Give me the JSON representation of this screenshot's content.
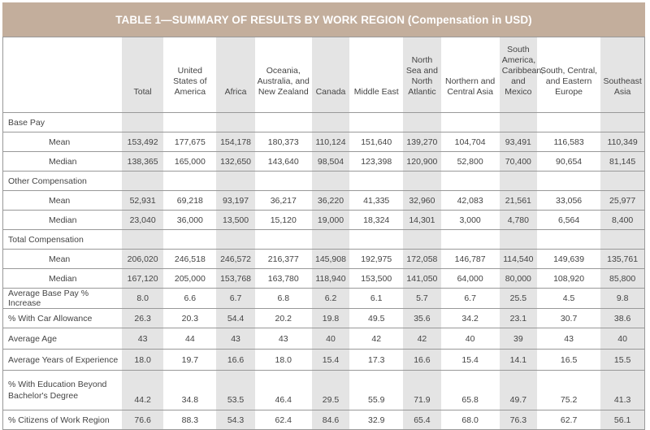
{
  "title": "TABLE 1—SUMMARY OF RESULTS BY WORK REGION (Compensation in USD)",
  "columns": [
    "Total",
    "United States of America",
    "Africa",
    "Oceania, Australia, and New Zealand",
    "Canada",
    "Middle East",
    "North Sea and North Atlantic",
    "Northern and Central Asia",
    "South America, Caribbean, and Mexico",
    "South, Central, and Eastern Europe",
    "Southeast Asia"
  ],
  "shaded_color": "#e4e4e4",
  "header_color": "#c3ae9c",
  "rows": [
    {
      "label": "Base Pay",
      "type": "section",
      "values": []
    },
    {
      "label": "Mean",
      "type": "sub",
      "values": [
        "153,492",
        "177,675",
        "154,178",
        "180,373",
        "110,124",
        "151,640",
        "139,270",
        "104,704",
        "93,491",
        "116,583",
        "110,349"
      ]
    },
    {
      "label": "Median",
      "type": "sub",
      "values": [
        "138,365",
        "165,000",
        "132,650",
        "143,640",
        "98,504",
        "123,398",
        "120,900",
        "52,800",
        "70,400",
        "90,654",
        "81,145"
      ]
    },
    {
      "label": "Other Compensation",
      "type": "section",
      "values": []
    },
    {
      "label": "Mean",
      "type": "sub",
      "values": [
        "52,931",
        "69,218",
        "93,197",
        "36,217",
        "36,220",
        "41,335",
        "32,960",
        "42,083",
        "21,561",
        "33,056",
        "25,977"
      ]
    },
    {
      "label": "Median",
      "type": "sub",
      "values": [
        "23,040",
        "36,000",
        "13,500",
        "15,120",
        "19,000",
        "18,324",
        "14,301",
        "3,000",
        "4,780",
        "6,564",
        "8,400"
      ]
    },
    {
      "label": "Total Compensation",
      "type": "section",
      "values": []
    },
    {
      "label": "Mean",
      "type": "sub",
      "values": [
        "206,020",
        "246,518",
        "246,572",
        "216,377",
        "145,908",
        "192,975",
        "172,058",
        "146,787",
        "114,540",
        "149,639",
        "135,761"
      ]
    },
    {
      "label": "Median",
      "type": "sub",
      "values": [
        "167,120",
        "205,000",
        "153,768",
        "163,780",
        "118,940",
        "153,500",
        "141,050",
        "64,000",
        "80,000",
        "108,920",
        "85,800"
      ]
    },
    {
      "label": "Average Base Pay % Increase",
      "type": "row",
      "values": [
        "8.0",
        "6.6",
        "6.7",
        "6.8",
        "6.2",
        "6.1",
        "5.7",
        "6.7",
        "25.5",
        "4.5",
        "9.8"
      ]
    },
    {
      "label": "% With Car Allowance",
      "type": "row",
      "values": [
        "26.3",
        "20.3",
        "54.4",
        "20.2",
        "19.8",
        "49.5",
        "35.6",
        "34.2",
        "23.1",
        "30.7",
        "38.6"
      ]
    },
    {
      "label": "Average Age",
      "type": "row26",
      "values": [
        "43",
        "44",
        "43",
        "43",
        "40",
        "42",
        "42",
        "40",
        "39",
        "43",
        "40"
      ]
    },
    {
      "label": "Average Years of Experience",
      "type": "row26",
      "values": [
        "18.0",
        "19.7",
        "16.6",
        "18.0",
        "15.4",
        "17.3",
        "16.6",
        "15.4",
        "14.1",
        "16.5",
        "15.5"
      ]
    },
    {
      "label": "% With Education Beyond Bachelor's Degree",
      "type": "tall",
      "values": [
        "44.2",
        "34.8",
        "53.5",
        "46.4",
        "29.5",
        "55.9",
        "71.9",
        "65.8",
        "49.7",
        "75.2",
        "41.3"
      ]
    },
    {
      "label": "% Citizens of Work Region",
      "type": "row",
      "values": [
        "76.6",
        "88.3",
        "54.3",
        "62.4",
        "84.6",
        "32.9",
        "65.4",
        "68.0",
        "76.3",
        "62.7",
        "56.1"
      ]
    }
  ]
}
